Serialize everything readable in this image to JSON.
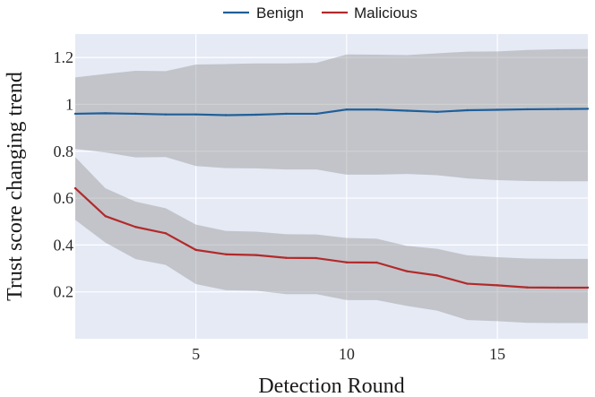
{
  "chart_data": {
    "type": "line",
    "title": "",
    "xlabel": "Detection Round",
    "ylabel": "Trust score changing trend",
    "xlim": [
      1,
      18
    ],
    "ylim": [
      0,
      1.3
    ],
    "xticks": [
      5,
      10,
      15
    ],
    "yticks": [
      0.2,
      0.4,
      0.6,
      0.8,
      1,
      1.2
    ],
    "xtick_labels": [
      "5",
      "10",
      "15"
    ],
    "ytick_labels": [
      "0.2",
      "0.4",
      "0.6",
      "0.8",
      "1",
      "1.2"
    ],
    "grid": true,
    "legend_position": "top-center",
    "x": [
      1,
      2,
      3,
      4,
      5,
      6,
      7,
      8,
      9,
      10,
      11,
      12,
      13,
      14,
      15,
      16,
      17,
      18
    ],
    "series": [
      {
        "name": "Benign",
        "color": "#1f5f99",
        "values": [
          0.96,
          0.962,
          0.96,
          0.957,
          0.957,
          0.954,
          0.956,
          0.96,
          0.96,
          0.978,
          0.978,
          0.973,
          0.968,
          0.975,
          0.977,
          0.979,
          0.98,
          0.981
        ],
        "upper": [
          1.115,
          1.13,
          1.143,
          1.142,
          1.17,
          1.172,
          1.175,
          1.175,
          1.177,
          1.213,
          1.212,
          1.21,
          1.218,
          1.225,
          1.226,
          1.232,
          1.235,
          1.236
        ],
        "lower": [
          0.81,
          0.795,
          0.774,
          0.775,
          0.737,
          0.728,
          0.727,
          0.722,
          0.722,
          0.7,
          0.7,
          0.703,
          0.698,
          0.684,
          0.677,
          0.673,
          0.672,
          0.672
        ]
      },
      {
        "name": "Malicious",
        "color": "#b22a2a",
        "values": [
          0.642,
          0.523,
          0.477,
          0.45,
          0.379,
          0.36,
          0.357,
          0.345,
          0.344,
          0.326,
          0.325,
          0.288,
          0.27,
          0.235,
          0.228,
          0.219,
          0.218,
          0.218
        ],
        "upper": [
          0.775,
          0.642,
          0.585,
          0.557,
          0.487,
          0.46,
          0.457,
          0.446,
          0.445,
          0.43,
          0.427,
          0.396,
          0.384,
          0.356,
          0.348,
          0.342,
          0.341,
          0.341
        ],
        "lower": [
          0.507,
          0.41,
          0.34,
          0.315,
          0.233,
          0.207,
          0.205,
          0.19,
          0.19,
          0.165,
          0.165,
          0.14,
          0.12,
          0.08,
          0.075,
          0.068,
          0.067,
          0.067
        ]
      }
    ]
  }
}
